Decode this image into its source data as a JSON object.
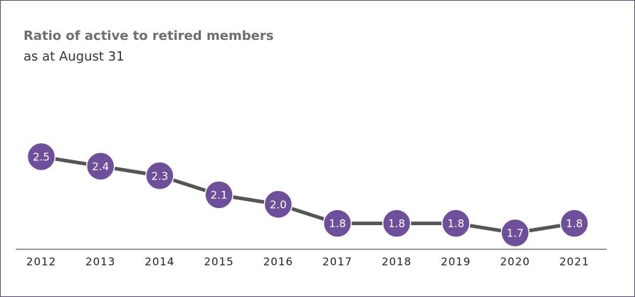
{
  "chart_data": {
    "type": "line",
    "title": "Ratio of active to retired members",
    "subtitle": "as at August 31",
    "categories": [
      "2012",
      "2013",
      "2014",
      "2015",
      "2016",
      "2017",
      "2018",
      "2019",
      "2020",
      "2021"
    ],
    "values": [
      2.5,
      2.4,
      2.3,
      2.1,
      2.0,
      1.8,
      1.8,
      1.8,
      1.7,
      1.8
    ],
    "value_labels": [
      "2.5",
      "2.4",
      "2.3",
      "2.1",
      "2.0",
      "1.8",
      "1.8",
      "1.8",
      "1.7",
      "1.8"
    ],
    "line_color": "#555555",
    "marker_color": "#6d4f9c"
  }
}
